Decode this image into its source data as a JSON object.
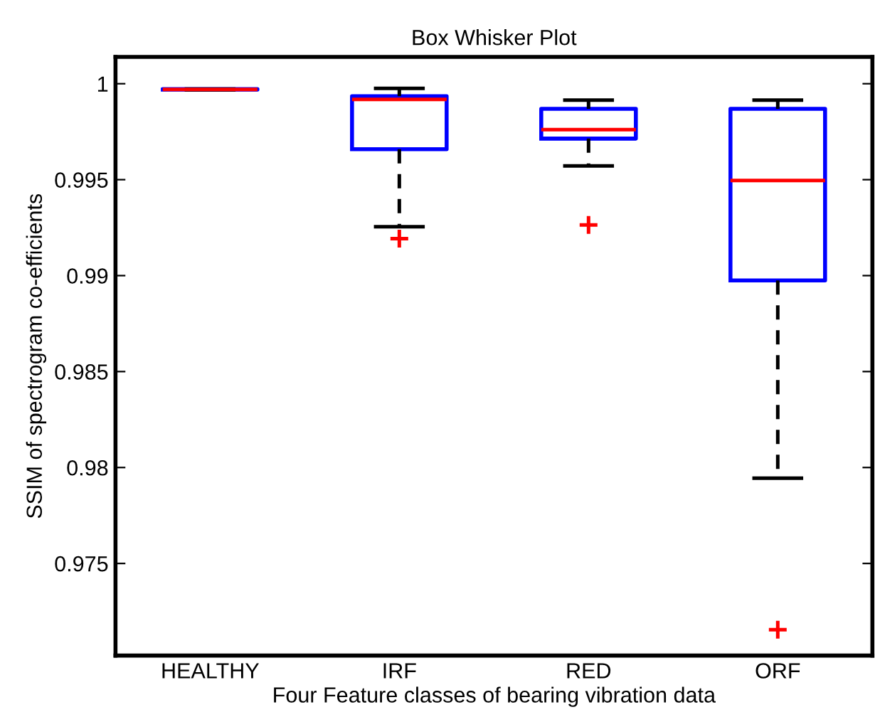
{
  "chart_data": {
    "type": "box",
    "title": "Box Whisker Plot",
    "xlabel": "Four Feature classes of bearing vibration data",
    "ylabel": "SSIM of spectrogram co-efficients",
    "categories": [
      "HEALTHY",
      "IRF",
      "RED",
      "ORF"
    ],
    "boxes": [
      {
        "low": 0.99968,
        "q1": 0.99969,
        "median": 0.9997,
        "q3": 0.99972,
        "high": 0.99972
      },
      {
        "low": 0.99255,
        "q1": 0.99659,
        "median": 0.99918,
        "q3": 0.99935,
        "high": 0.99976,
        "outliers": [
          0.99193
        ]
      },
      {
        "low": 0.99572,
        "q1": 0.99714,
        "median": 0.99761,
        "q3": 0.99869,
        "high": 0.99915,
        "outliers": [
          0.99264
        ]
      },
      {
        "low": 0.97944,
        "q1": 0.98975,
        "median": 0.99496,
        "q3": 0.99869,
        "high": 0.99915,
        "outliers": [
          0.97155
        ]
      }
    ],
    "ylim": [
      0.9702,
      1.0014
    ],
    "yticks": [
      {
        "value": 0.975,
        "label": "0.975"
      },
      {
        "value": 0.98,
        "label": "0.98"
      },
      {
        "value": 0.985,
        "label": "0.985"
      },
      {
        "value": 0.99,
        "label": "0.99"
      },
      {
        "value": 0.995,
        "label": "0.995"
      },
      {
        "value": 1,
        "label": "1"
      }
    ],
    "grid": false
  }
}
